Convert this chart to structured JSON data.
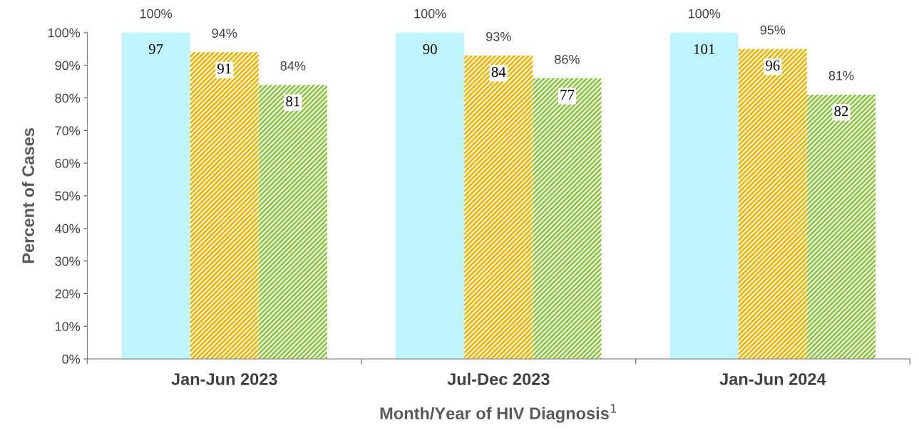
{
  "chart_data": {
    "type": "bar",
    "xlabel": "Month/Year of HIV Diagnosis$^{1}$",
    "ylabel": "Percent of Cases",
    "categories": [
      "Jan-Jun 2023",
      "Jul-Dec 2023",
      "Jan-Jun 2024"
    ],
    "series": [
      {
        "color": "#c0f4fc",
        "values": [
          100,
          100,
          100
        ],
        "value_labels": [
          "100%",
          "100%",
          "100%"
        ]
      },
      {
        "color": "#f0b400",
        "values": [
          94,
          93,
          95
        ],
        "value_labels": [
          "94%",
          "93%",
          "95%"
        ]
      },
      {
        "color": "#8cc63f",
        "values": [
          84,
          86,
          81
        ],
        "value_labels": [
          "84%",
          "86%",
          "81%"
        ]
      }
    ],
    "annotations": [
      "97",
      "90",
      "101",
      "91",
      "84",
      "96",
      "81",
      "77",
      "82"
    ],
    "ylim": [
      0,
      100
    ],
    "yticks": [
      {
        "value": 0,
        "label": "0%"
      },
      {
        "value": 10,
        "label": "10%"
      },
      {
        "value": 20,
        "label": "20%"
      },
      {
        "value": 30,
        "label": "30%"
      },
      {
        "value": 40,
        "label": "40%"
      },
      {
        "value": 50,
        "label": "50%"
      },
      {
        "value": 60,
        "label": "60%"
      },
      {
        "value": 70,
        "label": "70%"
      },
      {
        "value": 80,
        "label": "80%"
      },
      {
        "value": 90,
        "label": "90%"
      },
      {
        "value": 100,
        "label": "100%"
      }
    ],
    "grid": false,
    "legend": false
  }
}
